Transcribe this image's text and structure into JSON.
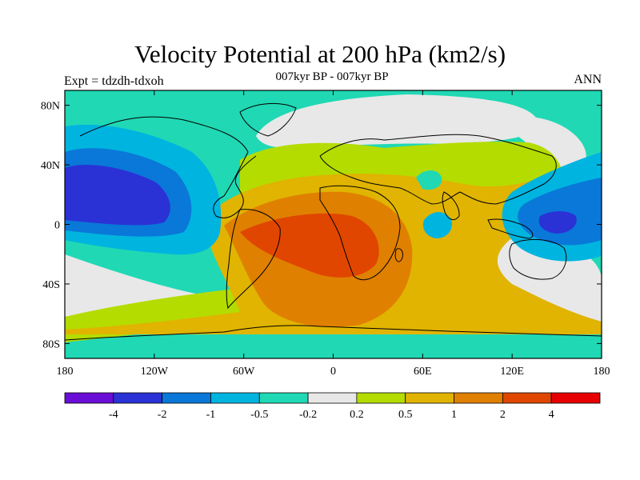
{
  "header": {
    "title": "Velocity Potential at 200 hPa (km2/s)",
    "subtitle": "007kyr BP - 007kyr BP",
    "experiment": "Expt = tdzdh-tdxoh",
    "season": "ANN"
  },
  "map": {
    "projection": "cylindrical-equidistant",
    "lon_range": [
      -180,
      180
    ],
    "lat_range": [
      -90,
      90
    ],
    "lat_ticks": [
      {
        "value": 80,
        "label": "80N"
      },
      {
        "value": 40,
        "label": "40N"
      },
      {
        "value": 0,
        "label": "0"
      },
      {
        "value": -40,
        "label": "40S"
      },
      {
        "value": -80,
        "label": "80S"
      }
    ],
    "lon_ticks": [
      {
        "value": -180,
        "label": "180"
      },
      {
        "value": -120,
        "label": "120W"
      },
      {
        "value": -60,
        "label": "60W"
      },
      {
        "value": 0,
        "label": "0"
      },
      {
        "value": 60,
        "label": "60E"
      },
      {
        "value": 120,
        "label": "120E"
      },
      {
        "value": 180,
        "label": "180"
      }
    ]
  },
  "colorbar": {
    "colors": [
      "#6a0dd6",
      "#2a32d6",
      "#0a78d8",
      "#00b4e0",
      "#20d8b4",
      "#e8e8e8",
      "#b4dc00",
      "#e0b400",
      "#e08000",
      "#e04600",
      "#e60000"
    ],
    "labels": [
      "-4",
      "-2",
      "-1",
      "-0.5",
      "-0.2",
      "0.2",
      "0.5",
      "1",
      "2",
      "4"
    ]
  }
}
